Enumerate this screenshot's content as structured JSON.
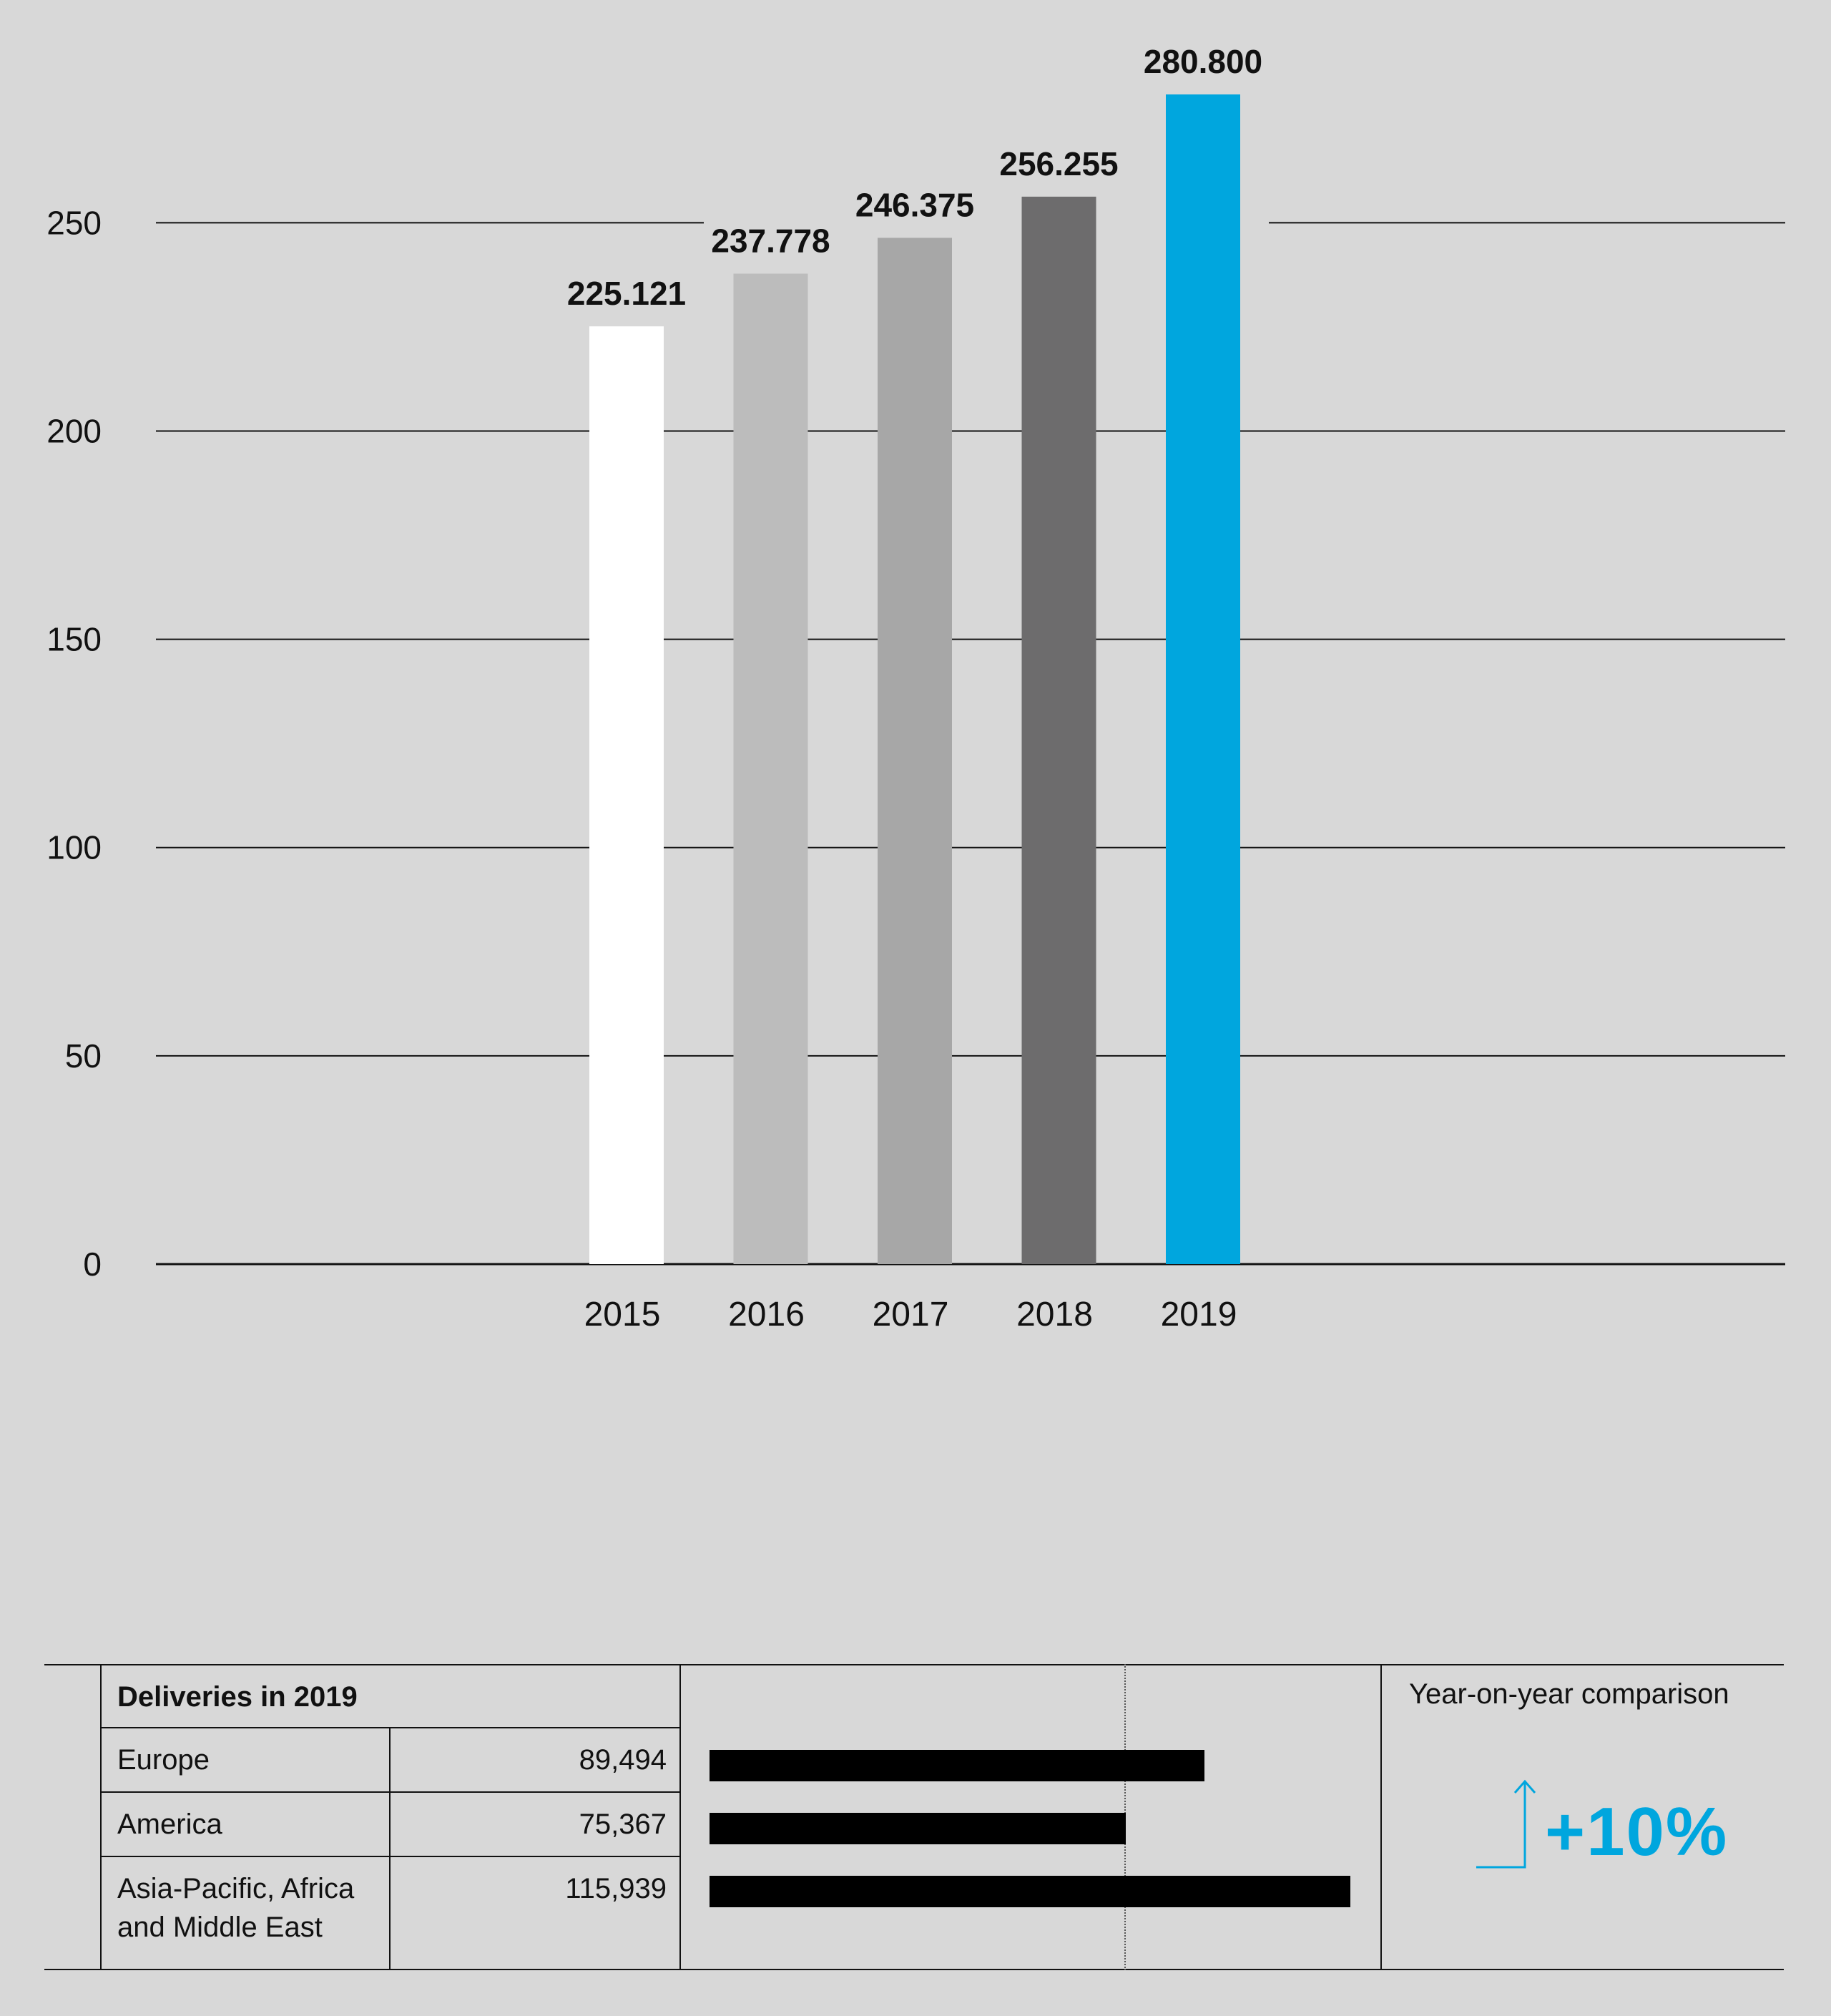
{
  "chart_data": {
    "type": "bar",
    "categories": [
      "2015",
      "2016",
      "2017",
      "2018",
      "2019"
    ],
    "values": [
      225.121,
      237.778,
      246.375,
      256.255,
      280.8
    ],
    "value_labels": [
      "225.121",
      "237.778",
      "246.375",
      "256.255",
      "280.800"
    ],
    "colors": [
      "#ffffff",
      "#bcbcbc",
      "#a7a7a7",
      "#6d6c6d",
      "#00a6de"
    ],
    "yticks": [
      0,
      50,
      100,
      150,
      200,
      250
    ],
    "ylim": [
      0,
      280.8
    ],
    "grid": true,
    "legend": "none"
  },
  "deliveries": {
    "title": "Deliveries in 2019",
    "regions": [
      {
        "name_lines": [
          "Europe"
        ],
        "value_label": "89,494",
        "value": 89494
      },
      {
        "name_lines": [
          "America"
        ],
        "value_label": "75,367",
        "value": 75367
      },
      {
        "name_lines": [
          "Asia-Pacific, Africa",
          "and Middle East"
        ],
        "value_label": "115,939",
        "value": 115939
      }
    ]
  },
  "yoy": {
    "label": "Year-on-year comparison",
    "value": "+10%",
    "icon": "up-arrow-icon",
    "color": "#00a6de"
  }
}
